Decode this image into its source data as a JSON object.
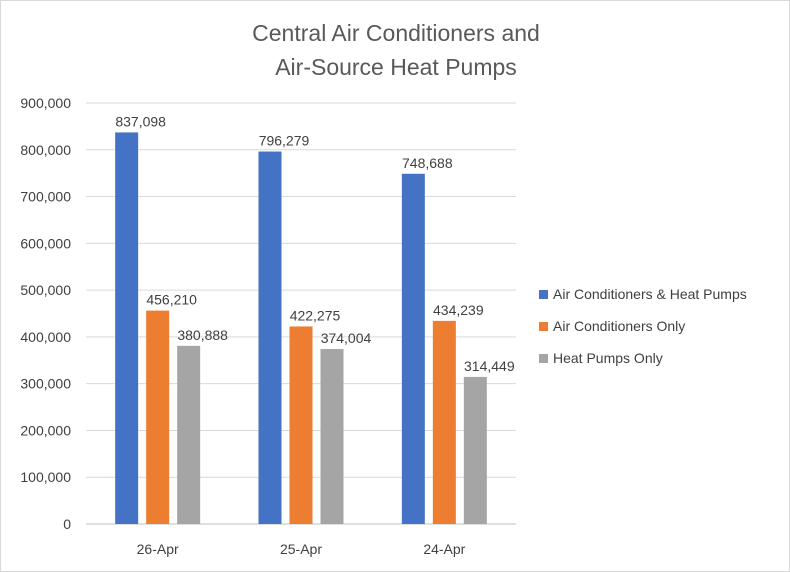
{
  "chart_data": {
    "type": "bar",
    "title_lines": [
      "Central Air Conditioners and",
      "Air-Source Heat Pumps"
    ],
    "categories": [
      "26-Apr",
      "25-Apr",
      "24-Apr"
    ],
    "series": [
      {
        "name": "Air Conditioners & Heat Pumps",
        "color": "#4472C4",
        "values": [
          837098,
          796279,
          748688
        ]
      },
      {
        "name": "Air Conditioners Only",
        "color": "#ED7D31",
        "values": [
          456210,
          422275,
          434239
        ]
      },
      {
        "name": "Heat Pumps Only",
        "color": "#A5A5A5",
        "values": [
          380888,
          374004,
          314449
        ]
      }
    ],
    "ylim": [
      0,
      900000
    ],
    "yticks": [
      0,
      100000,
      200000,
      300000,
      400000,
      500000,
      600000,
      700000,
      800000,
      900000
    ],
    "ytick_labels": [
      "0",
      "100,000",
      "200,000",
      "300,000",
      "400,000",
      "500,000",
      "600,000",
      "700,000",
      "800,000",
      "900,000"
    ],
    "data_labels": [
      [
        "837,098",
        "796,279",
        "748,688"
      ],
      [
        "456,210",
        "422,275",
        "434,239"
      ],
      [
        "380,888",
        "374,004",
        "314,449"
      ]
    ],
    "grid": true,
    "legend_position": "right"
  }
}
